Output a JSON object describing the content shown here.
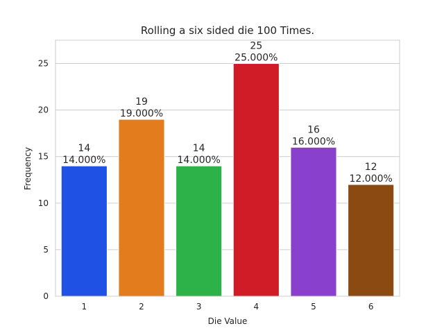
{
  "chart_data": {
    "type": "bar",
    "title": "Rolling a six sided die 100 Times.",
    "xlabel": "Die Value",
    "ylabel": "Frequency",
    "categories": [
      "1",
      "2",
      "3",
      "4",
      "5",
      "6"
    ],
    "values": [
      14,
      19,
      14,
      25,
      16,
      12
    ],
    "percent_labels": [
      "14.000%",
      "19.000%",
      "14.000%",
      "25.000%",
      "16.000%",
      "12.000%"
    ],
    "colors": [
      "#1f51e4",
      "#e27c1c",
      "#2db24a",
      "#cf1c27",
      "#8940cc",
      "#8b4a12"
    ],
    "yticks": [
      0,
      5,
      10,
      15,
      20,
      25
    ],
    "ylim": [
      0,
      27.5
    ],
    "grid": "horizontal"
  }
}
